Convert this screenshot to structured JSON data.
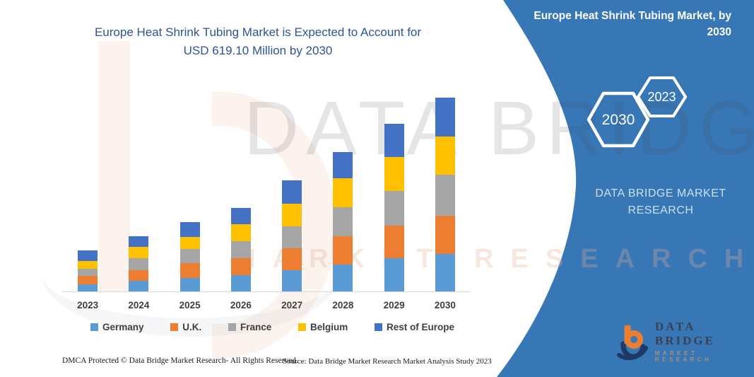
{
  "chart": {
    "title_line1": "Europe Heat Shrink Tubing Market is Expected to Account for",
    "title_line2": "USD 619.10 Million by 2030",
    "title_color": "#2D5591"
  },
  "chart_data": {
    "type": "bar",
    "stacked": true,
    "title": "Europe Heat Shrink Tubing Market is Expected to Account for USD 619.10 Million by 2030",
    "unit": "USD Million",
    "categories": [
      "2023",
      "2024",
      "2025",
      "2026",
      "2027",
      "2028",
      "2029",
      "2030"
    ],
    "series": [
      {
        "name": "Germany",
        "color": "#5B9BD5",
        "values": [
          23,
          34,
          44,
          53,
          69,
          87,
          106,
          120.4
        ]
      },
      {
        "name": "U.K.",
        "color": "#ED7D31",
        "values": [
          26,
          34,
          47,
          53,
          70,
          90,
          105,
          122.0
        ]
      },
      {
        "name": "France",
        "color": "#A5A5A5",
        "values": [
          24,
          38,
          45,
          54,
          70,
          93,
          109,
          130.7
        ]
      },
      {
        "name": "Belgium",
        "color": "#FFC000",
        "values": [
          25,
          36,
          39,
          54,
          71,
          92,
          109,
          122.0
        ]
      },
      {
        "name": "Rest of Europe",
        "color": "#4472C4",
        "values": [
          34,
          34,
          47,
          52,
          74,
          84,
          107,
          124.0
        ]
      }
    ],
    "totals": [
      132,
      176,
      222,
      266,
      354,
      446,
      536,
      619.1
    ],
    "ylim": [
      0,
      660
    ],
    "grid": false,
    "legend_position": "bottom",
    "xlabel": "",
    "ylabel": ""
  },
  "panel": {
    "title": "Europe Heat Shrink Tubing Market, by 2030",
    "hexagons": [
      "2030",
      "2023"
    ],
    "brand": "DATA BRIDGE MARKET RESEARCH",
    "color": "#3877B6"
  },
  "watermark": {
    "text": "DATA BRIDGE",
    "subtext": "MARKET RESEARCH"
  },
  "logo": {
    "name": "DATA BRIDGE",
    "sub": "MARKET RESEARCH"
  },
  "footer": {
    "left": "DMCA Protected © Data Bridge Market Research-  All Rights Reserved.",
    "source": "Source: Data Bridge Market Research  Market Analysis Study 2023"
  }
}
